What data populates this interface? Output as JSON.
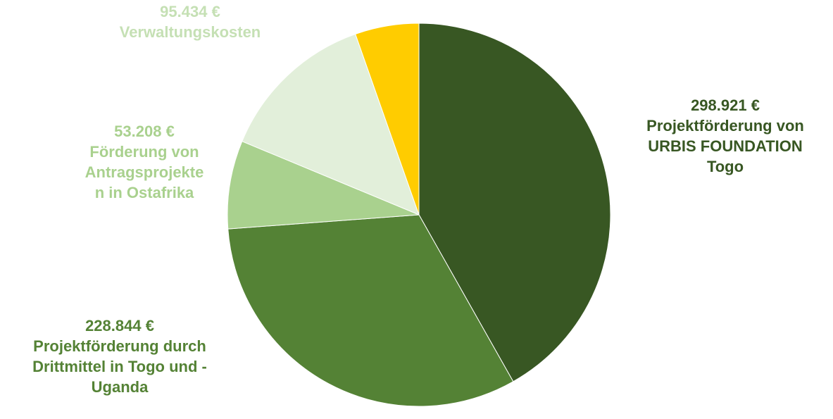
{
  "chart_data": {
    "type": "pie",
    "title": "",
    "slices": [
      {
        "value": 298921,
        "value_label": "298.921 €",
        "label_lines": [
          "Projektförderung von",
          "URBIS FOUNDATION",
          "Togo"
        ],
        "color": "#385723"
      },
      {
        "value": 228844,
        "value_label": "228.844 €",
        "label_lines": [
          "Projektförderung durch",
          "Drittmittel in Togo und -",
          "Uganda"
        ],
        "color": "#548235"
      },
      {
        "value": 53208,
        "value_label": "53.208 €",
        "label_lines": [
          "Förderung von",
          "Antragsprojekte",
          "n in Ostafrika"
        ],
        "color": "#A9D18E"
      },
      {
        "value": 95434,
        "value_label": "95.434 €",
        "label_lines": [
          "Verwaltungskosten"
        ],
        "color": "#E2EFDA"
      },
      {
        "value": 38500,
        "value_label": "",
        "label_lines": [],
        "color": "#FFCC00"
      }
    ],
    "label_colors": [
      "#385723",
      "#548235",
      "#A9D18E",
      "#C5E0B4"
    ],
    "legend": "none"
  }
}
